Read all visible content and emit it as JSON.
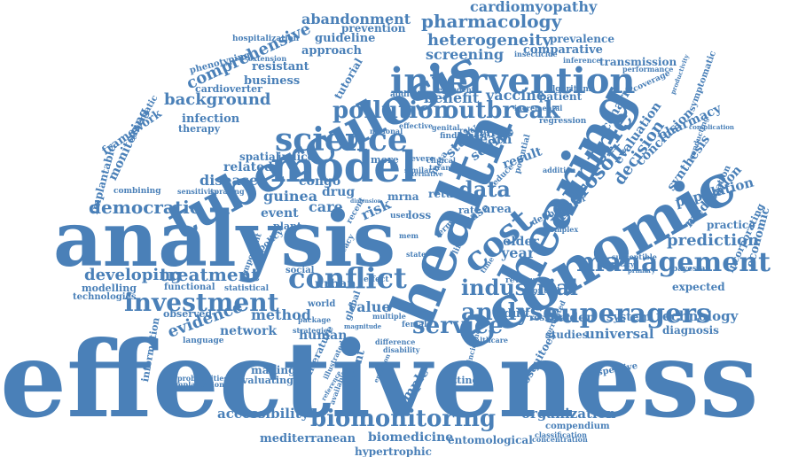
{
  "color": "#4a80b8",
  "words": [
    {
      "t": "effectiveness",
      "s": "xl"
    },
    {
      "t": "analysis",
      "s": "xl2"
    },
    {
      "t": "health",
      "s": "l"
    },
    {
      "t": "economic",
      "s": "l"
    },
    {
      "t": "tuberculosis",
      "s": "l"
    },
    {
      "t": "hearing",
      "s": "l"
    },
    {
      "t": "intervention",
      "s": "m"
    },
    {
      "t": "model",
      "s": "m"
    },
    {
      "t": "cost",
      "s": "m"
    },
    {
      "t": "countrie",
      "s": "m"
    },
    {
      "t": "science",
      "s": "m"
    },
    {
      "t": "conflict",
      "s": "m"
    },
    {
      "t": "management",
      "s": "m"
    },
    {
      "t": "pollution",
      "s": "m"
    },
    {
      "t": "outbreak",
      "s": "m"
    },
    {
      "t": "superagers",
      "s": "m"
    },
    {
      "t": "analyse",
      "s": "m"
    },
    {
      "t": "investment",
      "s": "m"
    },
    {
      "t": "service",
      "s": "m"
    },
    {
      "t": "biomonitoring",
      "s": "m"
    },
    {
      "t": "industrial",
      "s": "s"
    },
    {
      "t": "pharmacology",
      "s": "s"
    },
    {
      "t": "heterogeneity",
      "s": "s"
    },
    {
      "t": "democratic",
      "s": "s"
    },
    {
      "t": "data",
      "s": "s"
    },
    {
      "t": "microsoft",
      "s": "s"
    },
    {
      "t": "treatment",
      "s": "s"
    },
    {
      "t": "developing",
      "s": "s"
    },
    {
      "t": "evidence",
      "s": "s"
    },
    {
      "t": "comprehensive",
      "s": "s"
    },
    {
      "t": "background",
      "s": "s"
    },
    {
      "t": "prediction",
      "s": "s"
    },
    {
      "t": "screening",
      "s": "s"
    },
    {
      "t": "decision",
      "s": "s"
    },
    {
      "t": "cardiomyopathy",
      "s": "s"
    },
    {
      "t": "abandonment",
      "s": "s"
    },
    {
      "t": "disease",
      "s": "s"
    },
    {
      "t": "guinea",
      "s": "s"
    },
    {
      "t": "accessibility",
      "s": "s"
    },
    {
      "t": "organization",
      "s": "s"
    },
    {
      "t": "technology",
      "s": "s"
    },
    {
      "t": "universal",
      "s": "s"
    },
    {
      "t": "population",
      "s": "s"
    },
    {
      "t": "medication",
      "s": "s"
    },
    {
      "t": "evaluation",
      "s": "s"
    },
    {
      "t": "conclusion",
      "s": "s"
    },
    {
      "t": "scenario",
      "s": "s"
    },
    {
      "t": "synthesis",
      "s": "s"
    },
    {
      "t": "economic",
      "s": "s"
    },
    {
      "t": "pharmacy",
      "s": "s"
    },
    {
      "t": "benefit",
      "s": "s"
    },
    {
      "t": "vaccine",
      "s": "s"
    },
    {
      "t": "method",
      "s": "s"
    },
    {
      "t": "value",
      "s": "s"
    },
    {
      "t": "sample",
      "s": "s"
    },
    {
      "t": "year",
      "s": "s"
    },
    {
      "t": "risk",
      "s": "s"
    },
    {
      "t": "study",
      "s": "s"
    },
    {
      "t": "source",
      "s": "s"
    },
    {
      "t": "virus",
      "s": "s"
    },
    {
      "t": "death",
      "s": "s"
    },
    {
      "t": "result",
      "s": "s"
    },
    {
      "t": "care",
      "s": "s"
    },
    {
      "t": "drug",
      "s": "s"
    },
    {
      "t": "event",
      "s": "s"
    },
    {
      "t": "related",
      "s": "s"
    },
    {
      "t": "congo",
      "s": "s"
    },
    {
      "t": "urban",
      "s": "s"
    },
    {
      "t": "network",
      "s": "s"
    },
    {
      "t": "human",
      "s": "s"
    },
    {
      "t": "adult",
      "s": "s"
    },
    {
      "t": "burden",
      "s": "s"
    },
    {
      "t": "system",
      "s": "s"
    },
    {
      "t": "older",
      "s": "s"
    },
    {
      "t": "expected",
      "s": "s"
    },
    {
      "t": "practice",
      "s": "s"
    },
    {
      "t": "diagnosis",
      "s": "s"
    },
    {
      "t": "studies",
      "s": "s"
    },
    {
      "t": "mediterranean",
      "s": "s"
    },
    {
      "t": "biomedicine",
      "s": "s"
    },
    {
      "t": "entomological",
      "s": "s"
    },
    {
      "t": "hypertrophic",
      "s": "s"
    },
    {
      "t": "infection",
      "s": "s"
    },
    {
      "t": "business",
      "s": "s"
    },
    {
      "t": "approach",
      "s": "s"
    },
    {
      "t": "resistant",
      "s": "s"
    },
    {
      "t": "guideline",
      "s": "s"
    },
    {
      "t": "prevention",
      "s": "s"
    },
    {
      "t": "comparative",
      "s": "s"
    },
    {
      "t": "prevalence",
      "s": "s"
    },
    {
      "t": "transmission",
      "s": "s"
    },
    {
      "t": "monitoring",
      "s": "s"
    },
    {
      "t": "framework",
      "s": "s"
    },
    {
      "t": "tutorial",
      "s": "s"
    },
    {
      "t": "spatial",
      "s": "s"
    },
    {
      "t": "indice",
      "s": "s"
    },
    {
      "t": "mrna",
      "s": "s"
    },
    {
      "t": "more",
      "s": "s"
    },
    {
      "t": "area",
      "s": "s"
    },
    {
      "t": "case",
      "s": "s"
    },
    {
      "t": "rate",
      "s": "s"
    },
    {
      "t": "return",
      "s": "s"
    },
    {
      "t": "loss",
      "s": "s"
    },
    {
      "t": "world",
      "s": "s"
    },
    {
      "t": "making",
      "s": "s"
    },
    {
      "t": "evaluating",
      "s": "s"
    },
    {
      "t": "literature",
      "s": "s"
    },
    {
      "t": "different",
      "s": "s"
    },
    {
      "t": "setting",
      "s": "s"
    },
    {
      "t": "mosquitoes",
      "s": "s"
    },
    {
      "t": "perspective",
      "s": "s"
    },
    {
      "t": "compendium",
      "s": "s"
    },
    {
      "t": "information",
      "s": "s"
    },
    {
      "t": "observed",
      "s": "s"
    },
    {
      "t": "modelling",
      "s": "s"
    },
    {
      "t": "technologies",
      "s": "s"
    },
    {
      "t": "therapy",
      "s": "s"
    },
    {
      "t": "cardioverter",
      "s": "s"
    },
    {
      "t": "implantable",
      "s": "s"
    },
    {
      "t": "systematic",
      "s": "s"
    },
    {
      "t": "phenotyping",
      "s": "s"
    },
    {
      "t": "hospitalization",
      "s": "s"
    },
    {
      "t": "algorithm",
      "s": "s"
    },
    {
      "t": "patient",
      "s": "s"
    },
    {
      "t": "additional",
      "s": "s"
    },
    {
      "t": "regression",
      "s": "s"
    },
    {
      "t": "symptomatic",
      "s": "s"
    },
    {
      "t": "incorporating",
      "s": "s"
    },
    {
      "t": "bayesian",
      "s": "s"
    },
    {
      "t": "control",
      "s": "s"
    },
    {
      "t": "residual",
      "s": "s"
    },
    {
      "t": "review",
      "s": "s"
    },
    {
      "t": "female",
      "s": "s"
    },
    {
      "t": "global",
      "s": "s"
    },
    {
      "t": "multiple",
      "s": "s"
    },
    {
      "t": "functional",
      "s": "s"
    },
    {
      "t": "statistical",
      "s": "s"
    },
    {
      "t": "language",
      "s": "s"
    },
    {
      "t": "combining",
      "s": "s"
    },
    {
      "t": "sensitivity",
      "s": "s"
    },
    {
      "t": "spraying",
      "s": "s"
    },
    {
      "t": "plant",
      "s": "s"
    },
    {
      "t": "social",
      "s": "s"
    },
    {
      "t": "policy",
      "s": "s"
    },
    {
      "t": "important",
      "s": "s"
    },
    {
      "t": "effect",
      "s": "s"
    },
    {
      "t": "efficacy",
      "s": "s"
    },
    {
      "t": "recent",
      "s": "s"
    },
    {
      "t": "national",
      "s": "s"
    },
    {
      "t": "effective",
      "s": "s"
    },
    {
      "t": "finding",
      "s": "s"
    },
    {
      "t": "severe",
      "s": "s"
    },
    {
      "t": "genital",
      "s": "s"
    },
    {
      "t": "relevant",
      "s": "s"
    },
    {
      "t": "dependent",
      "s": "s"
    },
    {
      "t": "inference",
      "s": "s"
    },
    {
      "t": "insecticide",
      "s": "s"
    },
    {
      "t": "coverage",
      "s": "s"
    },
    {
      "t": "performance",
      "s": "s"
    },
    {
      "t": "productivity",
      "s": "s"
    },
    {
      "t": "complication",
      "s": "s"
    },
    {
      "t": "mutation",
      "s": "s"
    },
    {
      "t": "susceptible",
      "s": "s"
    },
    {
      "t": "defibrillator",
      "s": "s"
    },
    {
      "t": "complex",
      "s": "s"
    },
    {
      "t": "addition",
      "s": "s"
    },
    {
      "t": "potential",
      "s": "s"
    },
    {
      "t": "reduce",
      "s": "s"
    },
    {
      "t": "meta",
      "s": "s"
    },
    {
      "t": "term",
      "s": "s"
    },
    {
      "t": "user",
      "s": "s"
    },
    {
      "t": "life",
      "s": "s"
    },
    {
      "t": "time",
      "s": "s"
    },
    {
      "t": "state",
      "s": "s"
    },
    {
      "t": "mem",
      "s": "s"
    },
    {
      "t": "classification",
      "s": "s"
    },
    {
      "t": "concentration",
      "s": "s"
    },
    {
      "t": "healthcare",
      "s": "s"
    },
    {
      "t": "correlated",
      "s": "s"
    },
    {
      "t": "incidence",
      "s": "s"
    },
    {
      "t": "magnitude",
      "s": "s"
    },
    {
      "t": "disability",
      "s": "s"
    },
    {
      "t": "strategies",
      "s": "s"
    },
    {
      "t": "package",
      "s": "s"
    },
    {
      "t": "implantation",
      "s": "s"
    },
    {
      "t": "probabilities",
      "s": "s"
    },
    {
      "t": "extension",
      "s": "s"
    },
    {
      "t": "incremental",
      "s": "s"
    },
    {
      "t": "taranto",
      "s": "s"
    },
    {
      "t": "clinical",
      "s": "s"
    },
    {
      "t": "similar",
      "s": "s"
    },
    {
      "t": "alternative",
      "s": "s"
    },
    {
      "t": "dimension",
      "s": "s"
    },
    {
      "t": "difference",
      "s": "s"
    },
    {
      "t": "illustrated",
      "s": "s"
    },
    {
      "t": "emission",
      "s": "s"
    },
    {
      "t": "available",
      "s": "s"
    },
    {
      "t": "reference",
      "s": "s"
    },
    {
      "t": "conducting",
      "s": "s"
    },
    {
      "t": "primary",
      "s": "s"
    },
    {
      "t": "monetary",
      "s": "s"
    },
    {
      "t": "most",
      "s": "s"
    }
  ]
}
